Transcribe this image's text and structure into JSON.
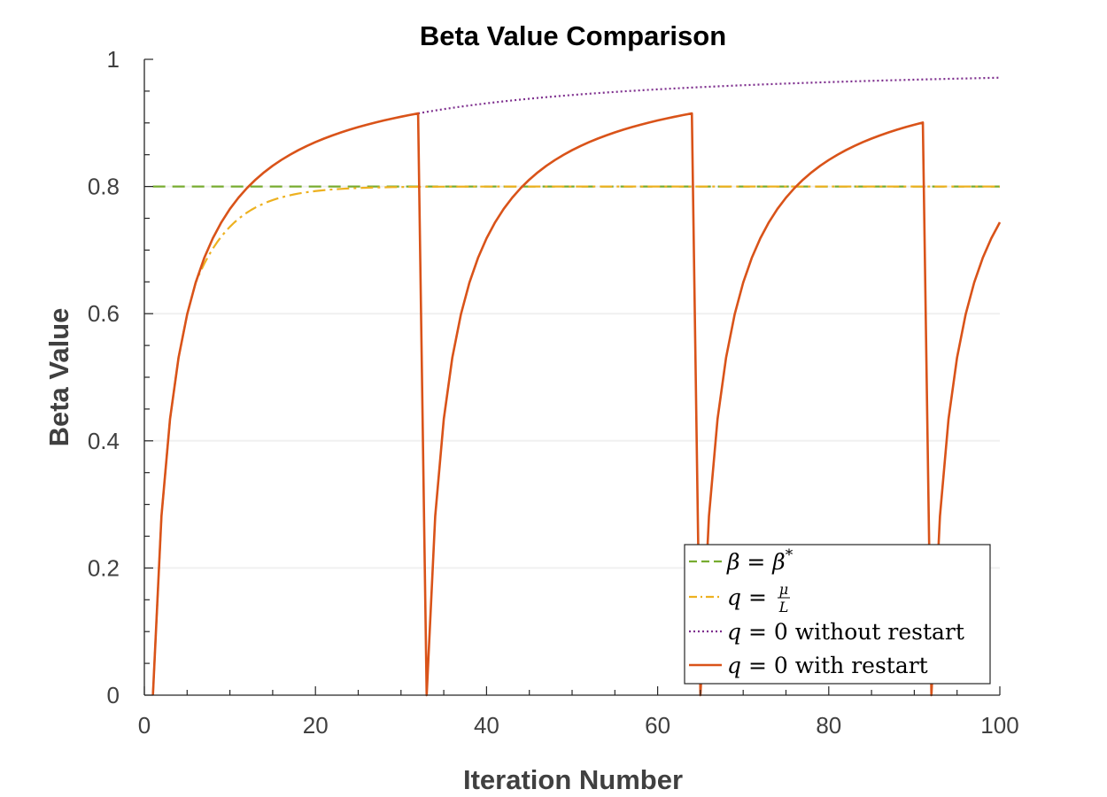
{
  "chart_data": {
    "type": "line",
    "title": "Beta Value Comparison",
    "xlabel": "Iteration Number",
    "ylabel": "Beta Value",
    "xlim": [
      0,
      100
    ],
    "ylim": [
      0,
      1
    ],
    "xticks": [
      0,
      20,
      40,
      60,
      80,
      100
    ],
    "yticks": [
      0,
      0.2,
      0.4,
      0.6,
      0.8,
      1
    ],
    "xtick_labels": [
      "0",
      "20",
      "40",
      "60",
      "80",
      "100"
    ],
    "ytick_labels": [
      "0",
      "0.2",
      "0.4",
      "0.6",
      "0.8",
      "1"
    ],
    "grid": true,
    "legend_position": "bottom-right",
    "series": [
      {
        "name": "β = β*",
        "legend_parts": [
          "β = β",
          "*"
        ],
        "style": "dashed",
        "color": "#77AC30",
        "kind": "constant",
        "value": 0.8,
        "x_range": [
          1,
          100
        ]
      },
      {
        "name": "q = μ/L",
        "legend_parts": [
          "q",
          " = ",
          "μ",
          "L"
        ],
        "style": "dashdot",
        "color": "#EDB120",
        "kind": "fast_conv",
        "limit": 0.8,
        "x_range": [
          1,
          100
        ]
      },
      {
        "name": "q = 0 without restart",
        "legend_parts": [
          "q",
          " = 0 without restart"
        ],
        "style": "dotted",
        "color": "#7E2F8E",
        "kind": "nesterov",
        "x_range": [
          32,
          100
        ]
      },
      {
        "name": "q = 0 with restart",
        "legend_parts": [
          "q",
          " = 0 with restart"
        ],
        "style": "solid",
        "color": "#D95319",
        "kind": "nesterov_restart",
        "restarts": [
          1,
          33,
          65,
          92
        ],
        "x_range": [
          1,
          100
        ]
      }
    ]
  }
}
